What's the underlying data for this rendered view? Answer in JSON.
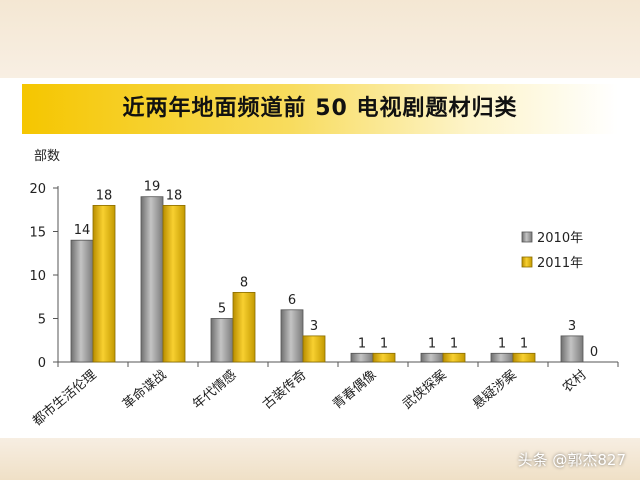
{
  "title": "近两年地面频道前 50 电视剧题材归类",
  "watermark": "头条 @郭杰827",
  "chart_data": {
    "type": "bar",
    "ylabel": "部数",
    "ylim": [
      0,
      20
    ],
    "yticks": [
      0,
      5,
      10,
      15,
      20
    ],
    "categories": [
      "都市生活伦理",
      "革命谍战",
      "年代情感",
      "古装传奇",
      "青春偶像",
      "武侠探案",
      "悬疑涉案",
      "农村"
    ],
    "series": [
      {
        "name": "2010年",
        "values": [
          14,
          19,
          5,
          6,
          1,
          1,
          1,
          3
        ],
        "color": "#9a9a9a"
      },
      {
        "name": "2011年",
        "values": [
          18,
          18,
          8,
          3,
          1,
          1,
          1,
          0
        ],
        "color": "#e8b800"
      }
    ],
    "legend_position": "right",
    "grid": false
  }
}
